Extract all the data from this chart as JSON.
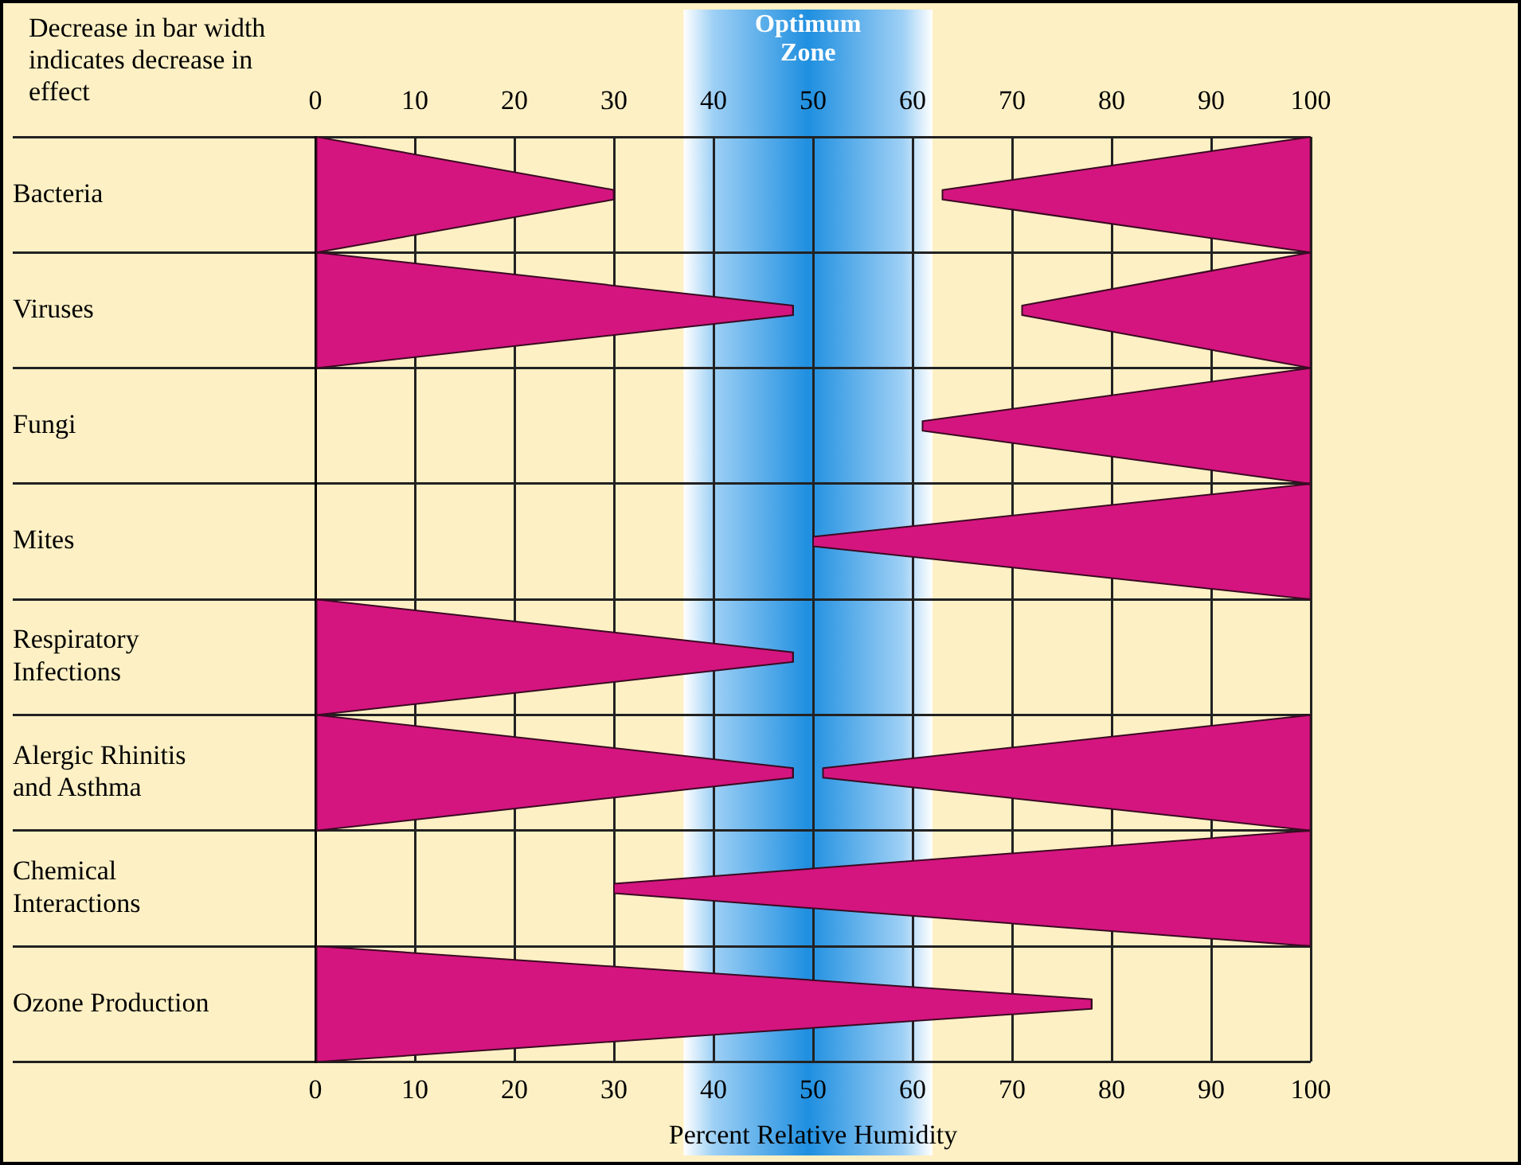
{
  "chart_data": {
    "type": "bar",
    "orientation": "horizontal",
    "title": null,
    "annotations": [
      "Decrease in bar width indicates decrease in effect"
    ],
    "categories": [
      "Bacteria",
      "Viruses",
      "Fungi",
      "Mites",
      "Respiratory Infections",
      "Alergic Rhinitis and Asthma",
      "Chemical Interactions",
      "Ozone Production"
    ],
    "series": [
      {
        "color": "#d4157f",
        "values": [
          30,
          48,
          null,
          null,
          48,
          48,
          null,
          78
        ],
        "base": [
          0,
          0,
          null,
          null,
          0,
          0,
          null,
          0
        ]
      },
      {
        "color": "#d4157f",
        "values": [
          37,
          29,
          39,
          50,
          null,
          49,
          70,
          null
        ],
        "base": [
          63,
          71,
          61,
          50,
          null,
          51,
          30,
          null
        ]
      }
    ],
    "xlim": [
      0,
      100
    ],
    "xticks": [
      0,
      10,
      20,
      30,
      40,
      50,
      60,
      70,
      80,
      90,
      100
    ],
    "x2lim": [
      0,
      100
    ],
    "x2ticks": [
      0,
      10,
      20,
      30,
      40,
      50,
      60,
      70,
      80,
      90,
      100
    ],
    "xlabel": "Percent Relative Humidity",
    "bands": [
      {
        "axis": "x",
        "from": 37,
        "to": 62,
        "label": "Optimum Zone",
        "color": "#1f8fe0"
      }
    ],
    "grid": true,
    "legend": false
  }
}
